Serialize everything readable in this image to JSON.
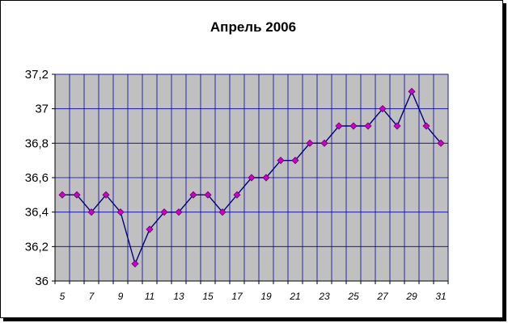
{
  "chart_data": {
    "type": "line",
    "title": "Апрель 2006",
    "xlabel": "",
    "ylabel": "",
    "x": [
      5,
      6,
      7,
      8,
      9,
      10,
      11,
      12,
      13,
      14,
      15,
      16,
      17,
      18,
      19,
      20,
      21,
      22,
      23,
      24,
      25,
      26,
      27,
      28,
      29,
      30,
      31
    ],
    "series": [
      {
        "values": [
          36.5,
          36.5,
          36.4,
          36.5,
          36.4,
          36.1,
          36.3,
          36.4,
          36.4,
          36.5,
          36.5,
          36.4,
          36.5,
          36.6,
          36.6,
          36.7,
          36.7,
          36.8,
          36.8,
          36.9,
          36.9,
          36.9,
          37.0,
          36.9,
          37.1,
          36.9,
          36.8
        ]
      }
    ],
    "x_tick_labels": [
      "5",
      "7",
      "9",
      "11",
      "13",
      "15",
      "17",
      "19",
      "21",
      "23",
      "25",
      "27",
      "29",
      "31"
    ],
    "y_tick_labels": [
      "36",
      "36,2",
      "36,4",
      "36,6",
      "36,8",
      "37",
      "37,2"
    ],
    "xlim": [
      4.5,
      31.5
    ],
    "ylim": [
      36,
      37.2
    ],
    "grid": true,
    "colors": {
      "plot_bg": "#c0c0c0",
      "grid": "#0000a0",
      "line": "#000080",
      "marker": "#cc00cc"
    }
  }
}
